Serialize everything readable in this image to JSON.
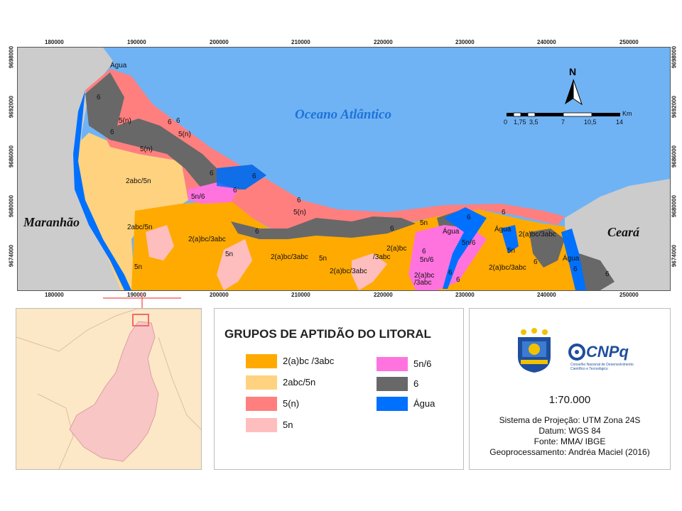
{
  "map": {
    "ocean_label": "Oceano Atlântico",
    "state_left": "Maranhão",
    "state_right": "Ceará",
    "north_label": "N",
    "coords_x": [
      "180000",
      "190000",
      "200000",
      "210000",
      "220000",
      "230000",
      "240000",
      "250000"
    ],
    "coords_y": [
      "9698000",
      "9692000",
      "9686000",
      "9680000",
      "9674000"
    ],
    "scale_bar": {
      "unit": "Km",
      "ticks": [
        "0",
        "1,75",
        "3,5",
        "7",
        "10,5",
        "14"
      ]
    },
    "labels": [
      {
        "text": "Água",
        "class": "agua"
      },
      {
        "text": "6",
        "class": "g6"
      },
      {
        "text": "5(n)",
        "class": "g5n"
      },
      {
        "text": "6",
        "class": "g6"
      },
      {
        "text": "6",
        "class": "g6"
      },
      {
        "text": "6",
        "class": "g6"
      },
      {
        "text": "5(n)",
        "class": "g5n"
      },
      {
        "text": "5(n)",
        "class": "g5n"
      },
      {
        "text": "2abc/5n",
        "class": "g2abc"
      },
      {
        "text": "6",
        "class": "g6"
      },
      {
        "text": "6",
        "class": "g6"
      },
      {
        "text": "5n/6",
        "class": "g5n6"
      },
      {
        "text": "6",
        "class": "g6"
      },
      {
        "text": "6",
        "class": "g6"
      },
      {
        "text": "5(n)",
        "class": "g5n"
      },
      {
        "text": "2abc/5n",
        "class": "g2abc"
      },
      {
        "text": "2(a)bc/3abc",
        "class": "g2a"
      },
      {
        "text": "5n",
        "class": "g5"
      },
      {
        "text": "6",
        "class": "g6"
      },
      {
        "text": "2(a)bc/3abc",
        "class": "g2a"
      },
      {
        "text": "5n",
        "class": "g5"
      },
      {
        "text": "2(a)bc/3abc",
        "class": "g2a"
      },
      {
        "text": "6",
        "class": "g6"
      },
      {
        "text": "5n",
        "class": "g5"
      },
      {
        "text": "2(a)bc",
        "class": "g2a"
      },
      {
        "text": "/3abc",
        "class": "g2a"
      },
      {
        "text": "Água",
        "class": "agua"
      },
      {
        "text": "6",
        "class": "g6"
      },
      {
        "text": "5n/6",
        "class": "g5n6"
      },
      {
        "text": "6",
        "class": "g6"
      },
      {
        "text": "5n/6",
        "class": "g5n6"
      },
      {
        "text": "2(a)bc",
        "class": "g2a"
      },
      {
        "text": "/3abc",
        "class": "g2a"
      },
      {
        "text": "6",
        "class": "g6"
      },
      {
        "text": "6",
        "class": "g6"
      },
      {
        "text": "Água",
        "class": "agua"
      },
      {
        "text": "6",
        "class": "g6"
      },
      {
        "text": "5n",
        "class": "g5"
      },
      {
        "text": "2(a)bc/3abc",
        "class": "g2a"
      },
      {
        "text": "2(a)bc/3abc",
        "class": "g2a"
      },
      {
        "text": "6",
        "class": "g6"
      },
      {
        "text": "Água",
        "class": "agua"
      },
      {
        "text": "6",
        "class": "g6"
      },
      {
        "text": "6",
        "class": "g6"
      },
      {
        "text": "5n",
        "class": "g5"
      }
    ]
  },
  "legend": {
    "title": "GRUPOS DE APTIDÃO DO LITORAL",
    "items": [
      {
        "label": "2(a)bc /3abc",
        "color": "#FFAA00"
      },
      {
        "label": "2abc/5n",
        "color": "#FFD27F"
      },
      {
        "label": "5(n)",
        "color": "#FF7F7F"
      },
      {
        "label": "5n",
        "color": "#FFBEBE"
      },
      {
        "label": "5n/6",
        "color": "#FF73DF"
      },
      {
        "label": "6",
        "color": "#686868"
      },
      {
        "label": "Água",
        "color": "#0070FF"
      }
    ]
  },
  "info": {
    "scale": "1:70.000",
    "projection": "Sistema de Projeção: UTM Zona 24S",
    "datum": "Datum: WGS 84",
    "source": "Fonte: MMA/ IBGE",
    "geo": "Geoprocessamento: Andréa Maciel (2016)",
    "logo_cnpq": "CNPq",
    "logo_cnpq_sub": "Conselho Nacional de Desenvolvimento Científico e Tecnológico"
  },
  "colors": {
    "ocean": "#6FB3F5",
    "land_gray": "#CCCCCC",
    "inset_land": "#FCE8C6",
    "inset_piaui": "#F9C6C6",
    "inset_box": "#F26B6B",
    "cnpq_blue": "#1F4E9E"
  }
}
